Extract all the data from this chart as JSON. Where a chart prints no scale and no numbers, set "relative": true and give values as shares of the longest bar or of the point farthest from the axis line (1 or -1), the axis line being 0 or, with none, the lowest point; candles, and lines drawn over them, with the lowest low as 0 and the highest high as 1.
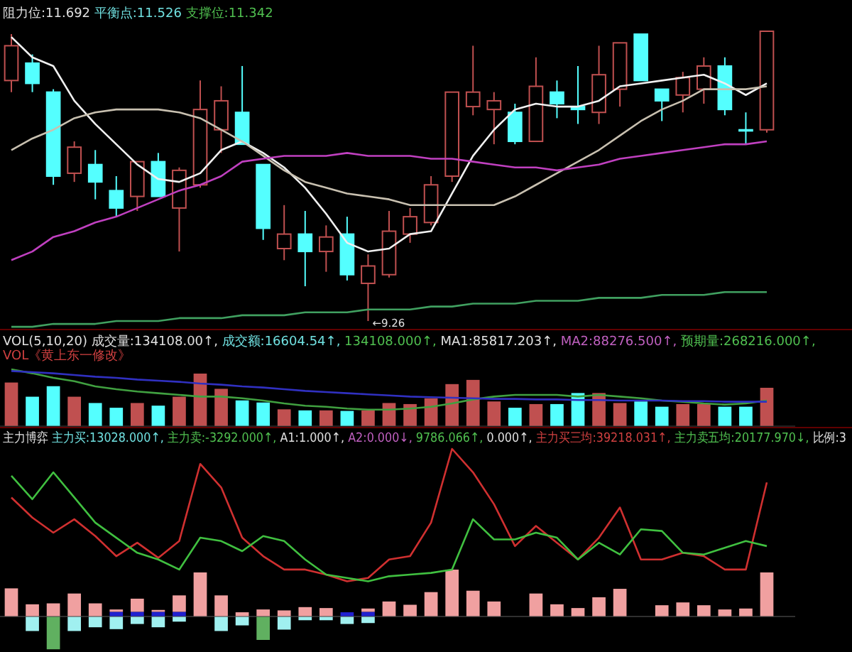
{
  "chart_data": [
    {
      "type": "candlestick",
      "relative": true,
      "categories": [
        null,
        null,
        null,
        null,
        null,
        null,
        null,
        null,
        null,
        null,
        null,
        null,
        null,
        null,
        null,
        null,
        null,
        null,
        null,
        null,
        null,
        null,
        null,
        null,
        null,
        null,
        null,
        null,
        null,
        null,
        null,
        null,
        null,
        null,
        null,
        null,
        null
      ],
      "title": "阻力位:11.692",
      "ohlc": [
        [
          0.83,
          0.99,
          0.79,
          0.95
        ],
        [
          0.89,
          0.92,
          0.79,
          0.82
        ],
        [
          0.79,
          0.8,
          0.47,
          0.5
        ],
        [
          0.51,
          0.62,
          0.48,
          0.6
        ],
        [
          0.54,
          0.59,
          0.42,
          0.48
        ],
        [
          0.45,
          0.5,
          0.36,
          0.39
        ],
        [
          0.43,
          0.55,
          0.38,
          0.55
        ],
        [
          0.55,
          0.58,
          0.43,
          0.43
        ],
        [
          0.39,
          0.53,
          0.24,
          0.52
        ],
        [
          0.47,
          0.83,
          0.46,
          0.73
        ],
        [
          0.66,
          0.81,
          0.58,
          0.76
        ],
        [
          0.72,
          0.88,
          0.61,
          0.61
        ],
        [
          0.54,
          0.54,
          0.28,
          0.32
        ],
        [
          0.25,
          0.4,
          0.21,
          0.3
        ],
        [
          0.3,
          0.38,
          0.12,
          0.24
        ],
        [
          0.24,
          0.33,
          0.17,
          0.29
        ],
        [
          0.3,
          0.36,
          0.14,
          0.16
        ],
        [
          0.13,
          0.23,
          0,
          0.19
        ],
        [
          0.16,
          0.38,
          0.15,
          0.31
        ],
        [
          0.3,
          0.39,
          0.27,
          0.36
        ],
        [
          0.34,
          0.5,
          0.33,
          0.47
        ],
        [
          0.5,
          0.79,
          0.48,
          0.79
        ],
        [
          0.74,
          0.95,
          0.71,
          0.79
        ],
        [
          0.73,
          0.79,
          0.61,
          0.76
        ],
        [
          0.72,
          0.75,
          0.61,
          0.62
        ],
        [
          0.62,
          0.91,
          0.62,
          0.81
        ],
        [
          0.79,
          0.83,
          0.7,
          0.75
        ],
        [
          0.74,
          0.88,
          0.68,
          0.73
        ],
        [
          0.72,
          0.95,
          0.68,
          0.85
        ],
        [
          0.8,
          0.96,
          0.74,
          0.96
        ],
        [
          0.99,
          0.99,
          0.83,
          0.83
        ],
        [
          0.8,
          0.8,
          0.69,
          0.76
        ],
        [
          0.78,
          0.86,
          0.72,
          0.84
        ],
        [
          0.8,
          0.91,
          0.75,
          0.88
        ],
        [
          0.88,
          0.91,
          0.71,
          0.73
        ],
        [
          0.66,
          0.72,
          0.61,
          0.66
        ],
        [
          0.66,
          1.0,
          0.65,
          1.0
        ]
      ],
      "series": [
        {
          "type": "line",
          "color": "#f0f0f0",
          "values": [
            0.98,
            0.91,
            0.88,
            0.76,
            0.68,
            0.61,
            0.54,
            0.49,
            0.48,
            0.51,
            0.59,
            0.62,
            0.58,
            0.53,
            0.46,
            0.37,
            0.27,
            0.24,
            0.25,
            0.3,
            0.31,
            0.44,
            0.57,
            0.66,
            0.73,
            0.75,
            0.74,
            0.74,
            0.76,
            0.81,
            0.82,
            0.83,
            0.84,
            0.85,
            0.82,
            0.78,
            0.82
          ]
        },
        {
          "type": "line",
          "color": "#c8c0b0",
          "values": [
            0.59,
            0.63,
            0.66,
            0.7,
            0.72,
            0.73,
            0.73,
            0.73,
            0.72,
            0.7,
            0.66,
            0.62,
            0.57,
            0.52,
            0.48,
            0.46,
            0.44,
            0.43,
            0.42,
            0.4,
            0.4,
            0.4,
            0.4,
            0.4,
            0.43,
            0.47,
            0.51,
            0.55,
            0.59,
            0.64,
            0.69,
            0.73,
            0.76,
            0.8,
            0.8,
            0.8,
            0.81
          ]
        },
        {
          "type": "line",
          "color": "#c040c0",
          "values": [
            0.21,
            0.24,
            0.29,
            0.31,
            0.34,
            0.36,
            0.39,
            0.42,
            0.45,
            0.47,
            0.5,
            0.55,
            0.56,
            0.57,
            0.57,
            0.57,
            0.58,
            0.57,
            0.57,
            0.57,
            0.56,
            0.56,
            0.55,
            0.54,
            0.53,
            0.53,
            0.52,
            0.53,
            0.54,
            0.56,
            0.57,
            0.58,
            0.59,
            0.6,
            0.61,
            0.61,
            0.62
          ]
        },
        {
          "type": "line",
          "color": "#40a060",
          "values": [
            -0.02,
            -0.02,
            -0.01,
            -0.01,
            -0.01,
            0.0,
            0.0,
            0.0,
            0.01,
            0.01,
            0.01,
            0.02,
            0.02,
            0.02,
            0.03,
            0.03,
            0.03,
            0.04,
            0.04,
            0.04,
            0.05,
            0.05,
            0.06,
            0.06,
            0.06,
            0.07,
            0.07,
            0.07,
            0.08,
            0.08,
            0.08,
            0.09,
            0.09,
            0.09,
            0.1,
            0.1,
            0.1
          ]
        }
      ],
      "annotations": [
        "平衡点:11.526",
        "支撑位:11.342",
        "←9.26"
      ]
    },
    {
      "type": "bar",
      "relative": true,
      "categories": [
        null,
        null,
        null,
        null,
        null,
        null,
        null,
        null,
        null,
        null,
        null,
        null,
        null,
        null,
        null,
        null,
        null,
        null,
        null,
        null,
        null,
        null,
        null,
        null,
        null,
        null,
        null,
        null,
        null,
        null,
        null,
        null,
        null,
        null,
        null,
        null,
        null
      ],
      "subtitle": "VOL《黄上东一修改》",
      "series": [
        {
          "values": [
            0.83,
            0.56,
            0.76,
            0.56,
            0.44,
            0.35,
            0.44,
            0.39,
            0.56,
            1.0,
            0.71,
            0.49,
            0.45,
            0.32,
            0.3,
            0.3,
            0.29,
            0.3,
            0.44,
            0.42,
            0.53,
            0.8,
            0.88,
            0.47,
            0.35,
            0.42,
            0.42,
            0.63,
            0.63,
            0.44,
            0.47,
            0.37,
            0.42,
            0.42,
            0.37,
            0.37,
            0.73
          ],
          "colors": [
            "#c05050",
            "#54ffff",
            "#54ffff",
            "#c05050",
            "#54ffff",
            "#54ffff",
            "#c05050",
            "#54ffff",
            "#c05050",
            "#c05050",
            "#c05050",
            "#54ffff",
            "#54ffff",
            "#c05050",
            "#54ffff",
            "#c05050",
            "#54ffff",
            "#c05050",
            "#c05050",
            "#c05050",
            "#c05050",
            "#c05050",
            "#c05050",
            "#c05050",
            "#54ffff",
            "#c05050",
            "#54ffff",
            "#54ffff",
            "#c05050",
            "#c05050",
            "#54ffff",
            "#54ffff",
            "#c05050",
            "#c05050",
            "#54ffff",
            "#54ffff",
            "#c05050"
          ]
        }
      ],
      "annotations": [
        "VOL(5,10,20) 成交量:134108.00↑,",
        "成交额:16604.54↑,",
        "134108.000↑,",
        "MA1:85817.203↑,",
        "MA2:88276.500↑,",
        "预期量:268216.000↑,"
      ]
    },
    {
      "type": "line",
      "relative": true,
      "categories": [
        null,
        null,
        null,
        null,
        null,
        null,
        null,
        null,
        null,
        null,
        null,
        null,
        null,
        null,
        null,
        null,
        null,
        null,
        null,
        null,
        null,
        null,
        null,
        null,
        null,
        null,
        null,
        null,
        null,
        null,
        null,
        null,
        null,
        null,
        null,
        null,
        null
      ],
      "series": [
        {
          "color": "#40a040",
          "values": [
            1.0,
            0.93,
            0.85,
            0.79,
            0.7,
            0.65,
            0.61,
            0.58,
            0.55,
            0.52,
            0.52,
            0.49,
            0.45,
            0.4,
            0.36,
            0.34,
            0.31,
            0.29,
            0.29,
            0.31,
            0.34,
            0.4,
            0.47,
            0.52,
            0.55,
            0.55,
            0.55,
            0.52,
            0.55,
            0.52,
            0.49,
            0.45,
            0.43,
            0.4,
            0.38,
            0.4,
            0.45
          ]
        },
        {
          "color": "#3030c0",
          "values": [
            0.97,
            0.95,
            0.93,
            0.9,
            0.87,
            0.85,
            0.82,
            0.8,
            0.78,
            0.75,
            0.73,
            0.7,
            0.68,
            0.65,
            0.62,
            0.6,
            0.58,
            0.56,
            0.54,
            0.52,
            0.51,
            0.5,
            0.49,
            0.48,
            0.48,
            0.47,
            0.47,
            0.46,
            0.46,
            0.45,
            0.45,
            0.45,
            0.44,
            0.44,
            0.43,
            0.43,
            0.43
          ]
        }
      ]
    },
    {
      "type": "bar",
      "relative": true,
      "stacked": true,
      "categories": [
        null,
        null,
        null,
        null,
        null,
        null,
        null,
        null,
        null,
        null,
        null,
        null,
        null,
        null,
        null,
        null,
        null,
        null,
        null,
        null,
        null,
        null,
        null,
        null,
        null,
        null,
        null,
        null,
        null,
        null,
        null,
        null,
        null,
        null,
        null,
        null,
        null
      ],
      "series": [
        {
          "color": "#2020d0",
          "values": [
            0,
            0,
            0,
            0,
            0,
            0.1,
            0.1,
            0.1,
            0.1,
            0,
            0,
            0,
            0,
            0,
            0,
            0,
            0.09,
            0.1,
            0,
            0,
            0,
            0,
            0,
            0,
            0,
            0,
            0,
            0,
            0,
            0,
            0,
            0,
            0,
            0,
            0,
            0,
            0
          ]
        },
        {
          "color": "#f0a0a0",
          "values": [
            0.6,
            0.26,
            0.28,
            0.49,
            0.28,
            0.05,
            0.28,
            0.04,
            0.35,
            0.94,
            0.45,
            0.09,
            0.15,
            0.13,
            0.2,
            0.18,
            0,
            0.07,
            0.32,
            0.25,
            0.52,
            1.0,
            0.55,
            0.32,
            0,
            0.49,
            0.26,
            0.18,
            0.41,
            0.59,
            0,
            0.24,
            0.3,
            0.24,
            0.15,
            0.17,
            0.94
          ]
        },
        {
          "values": [
            0,
            -0.31,
            -0.7,
            -0.31,
            -0.23,
            -0.27,
            -0.16,
            -0.23,
            -0.11,
            0,
            -0.31,
            -0.19,
            -0.5,
            -0.28,
            -0.08,
            -0.08,
            -0.16,
            -0.14,
            null,
            null,
            null,
            null,
            null,
            null,
            null,
            null,
            null,
            null,
            null,
            null,
            null,
            null,
            null,
            null,
            null,
            null,
            null
          ],
          "colors": [
            "#a0f0f0",
            "#a0f0f0",
            "#60b060",
            "#a0f0f0",
            "#a0f0f0",
            "#a0f0f0",
            "#a0f0f0",
            "#a0f0f0",
            "#a0f0f0",
            "#a0f0f0",
            "#a0f0f0",
            "#a0f0f0",
            "#60b060",
            "#a0f0f0",
            "#a0f0f0",
            "#a0f0f0",
            "#a0f0f0",
            "#a0f0f0",
            "#a0f0f0",
            "#a0f0f0",
            "#a0f0f0",
            "#a0f0f0",
            "#a0f0f0",
            "#a0f0f0",
            "#a0f0f0",
            "#a0f0f0",
            "#a0f0f0",
            "#a0f0f0",
            "#a0f0f0",
            "#a0f0f0",
            "#a0f0f0",
            "#a0f0f0",
            "#a0f0f0",
            "#a0f0f0",
            "#a0f0f0",
            "#a0f0f0",
            "#a0f0f0"
          ]
        }
      ],
      "annotations": [
        "主力博弈",
        "主力买:13028.000↑,",
        "主力卖:-3292.000↑,",
        "A1:1.000↑,",
        "A2:0.000↓,",
        "9786.066↑,",
        "0.000↑,",
        "主力买三均:39218.031↑,",
        "主力卖五均:20177.970↓,",
        "比例:3"
      ]
    },
    {
      "type": "line",
      "relative": true,
      "categories": [
        null,
        null,
        null,
        null,
        null,
        null,
        null,
        null,
        null,
        null,
        null,
        null,
        null,
        null,
        null,
        null,
        null,
        null,
        null,
        null,
        null,
        null,
        null,
        null,
        null,
        null,
        null,
        null,
        null,
        null,
        null,
        null,
        null,
        null,
        null,
        null,
        null
      ],
      "series": [
        {
          "color": "#d03030",
          "values": [
            0.71,
            0.59,
            0.5,
            0.58,
            0.48,
            0.36,
            0.44,
            0.35,
            0.45,
            0.91,
            0.77,
            0.47,
            0.36,
            0.28,
            0.28,
            0.25,
            0.21,
            0.23,
            0.34,
            0.36,
            0.56,
            1.0,
            0.86,
            0.67,
            0.42,
            0.54,
            0.44,
            0.34,
            0.47,
            0.65,
            0.34,
            0.34,
            0.38,
            0.36,
            0.28,
            0.28,
            0.8
          ]
        },
        {
          "color": "#40c040",
          "values": [
            0.84,
            0.7,
            0.86,
            0.71,
            0.56,
            0.47,
            0.38,
            0.34,
            0.28,
            0.47,
            0.45,
            0.39,
            0.48,
            0.45,
            0.34,
            0.25,
            0.23,
            0.21,
            0.24,
            0.25,
            0.26,
            0.28,
            0.58,
            0.46,
            0.46,
            0.5,
            0.47,
            0.34,
            0.44,
            0.37,
            0.52,
            0.51,
            0.38,
            0.37,
            0.41,
            0.45,
            0.42
          ]
        }
      ]
    }
  ]
}
